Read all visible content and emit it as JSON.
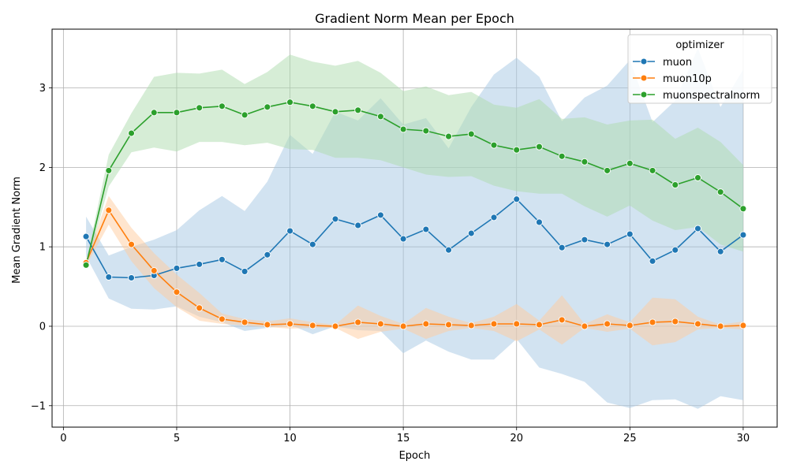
{
  "chart_data": {
    "type": "line",
    "title": "Gradient Norm Mean per Epoch",
    "xlabel": "Epoch",
    "ylabel": "Mean Gradient Norm",
    "xlim": [
      -0.5,
      31.5
    ],
    "ylim": [
      -1.27,
      3.74
    ],
    "xticks": [
      0,
      5,
      10,
      15,
      20,
      25,
      30
    ],
    "yticks": [
      -1,
      0,
      1,
      2,
      3
    ],
    "grid": true,
    "legend": {
      "title": "optimizer",
      "placement": "top-right"
    },
    "x": [
      1,
      2,
      3,
      4,
      5,
      6,
      7,
      8,
      9,
      10,
      11,
      12,
      13,
      14,
      15,
      16,
      17,
      18,
      19,
      20,
      21,
      22,
      23,
      24,
      25,
      26,
      27,
      28,
      29,
      30
    ],
    "series": [
      {
        "name": "muon",
        "color": "#1f77b4",
        "band_color": "#a6c8e4",
        "values": [
          1.13,
          0.62,
          0.61,
          0.64,
          0.73,
          0.78,
          0.84,
          0.69,
          0.9,
          1.2,
          1.03,
          1.35,
          1.27,
          1.4,
          1.1,
          1.22,
          0.96,
          1.17,
          1.37,
          1.6,
          1.31,
          0.99,
          1.09,
          1.03,
          1.16,
          0.82,
          0.96,
          1.23,
          0.94,
          1.15
        ],
        "lower": [
          0.88,
          0.35,
          0.22,
          0.21,
          0.25,
          0.12,
          0.05,
          -0.06,
          -0.02,
          0.02,
          -0.1,
          0.0,
          -0.05,
          -0.06,
          -0.34,
          -0.18,
          -0.32,
          -0.42,
          -0.42,
          -0.16,
          -0.52,
          -0.6,
          -0.7,
          -0.96,
          -1.03,
          -0.93,
          -0.92,
          -1.04,
          -0.88,
          -0.93
        ],
        "upper": [
          1.38,
          0.89,
          1.0,
          1.09,
          1.21,
          1.46,
          1.64,
          1.45,
          1.82,
          2.41,
          2.17,
          2.7,
          2.59,
          2.87,
          2.54,
          2.62,
          2.24,
          2.76,
          3.17,
          3.38,
          3.14,
          2.58,
          2.88,
          3.03,
          3.35,
          2.57,
          2.84,
          3.5,
          2.76,
          3.23
        ]
      },
      {
        "name": "muon10p",
        "color": "#ff7f0e",
        "band_color": "#ffcc9e",
        "values": [
          0.8,
          1.46,
          1.03,
          0.7,
          0.43,
          0.23,
          0.09,
          0.05,
          0.02,
          0.03,
          0.01,
          0.0,
          0.05,
          0.03,
          0.0,
          0.03,
          0.02,
          0.01,
          0.03,
          0.03,
          0.02,
          0.08,
          0.0,
          0.03,
          0.01,
          0.05,
          0.06,
          0.03,
          0.0,
          0.01
        ],
        "lower": [
          0.76,
          1.28,
          0.82,
          0.48,
          0.24,
          0.07,
          0.03,
          0.01,
          -0.01,
          -0.03,
          -0.02,
          -0.02,
          -0.16,
          -0.07,
          -0.03,
          -0.16,
          -0.06,
          -0.02,
          -0.06,
          -0.19,
          -0.04,
          -0.23,
          -0.02,
          -0.07,
          -0.03,
          -0.24,
          -0.2,
          -0.04,
          -0.02,
          -0.04
        ],
        "upper": [
          0.84,
          1.64,
          1.24,
          0.92,
          0.65,
          0.42,
          0.16,
          0.09,
          0.06,
          0.1,
          0.05,
          0.02,
          0.26,
          0.13,
          0.03,
          0.23,
          0.12,
          0.04,
          0.12,
          0.28,
          0.07,
          0.39,
          0.03,
          0.15,
          0.05,
          0.36,
          0.34,
          0.12,
          0.02,
          0.06
        ]
      },
      {
        "name": "muonspectralnorm",
        "color": "#2ca02c",
        "band_color": "#aedcae",
        "values": [
          0.77,
          1.96,
          2.43,
          2.69,
          2.69,
          2.75,
          2.77,
          2.66,
          2.76,
          2.82,
          2.77,
          2.7,
          2.72,
          2.64,
          2.48,
          2.46,
          2.39,
          2.42,
          2.28,
          2.22,
          2.26,
          2.14,
          2.07,
          1.96,
          2.05,
          1.96,
          1.78,
          1.87,
          1.69,
          1.48
        ],
        "lower": [
          0.73,
          1.76,
          2.19,
          2.25,
          2.2,
          2.32,
          2.32,
          2.28,
          2.31,
          2.23,
          2.22,
          2.12,
          2.12,
          2.09,
          2.0,
          1.91,
          1.88,
          1.89,
          1.77,
          1.7,
          1.67,
          1.67,
          1.51,
          1.38,
          1.52,
          1.33,
          1.21,
          1.25,
          1.03,
          0.94
        ],
        "upper": [
          0.81,
          2.16,
          2.68,
          3.14,
          3.19,
          3.18,
          3.23,
          3.05,
          3.2,
          3.42,
          3.33,
          3.28,
          3.34,
          3.19,
          2.96,
          3.02,
          2.91,
          2.95,
          2.79,
          2.75,
          2.86,
          2.61,
          2.63,
          2.54,
          2.59,
          2.6,
          2.36,
          2.5,
          2.32,
          2.03
        ]
      }
    ]
  }
}
